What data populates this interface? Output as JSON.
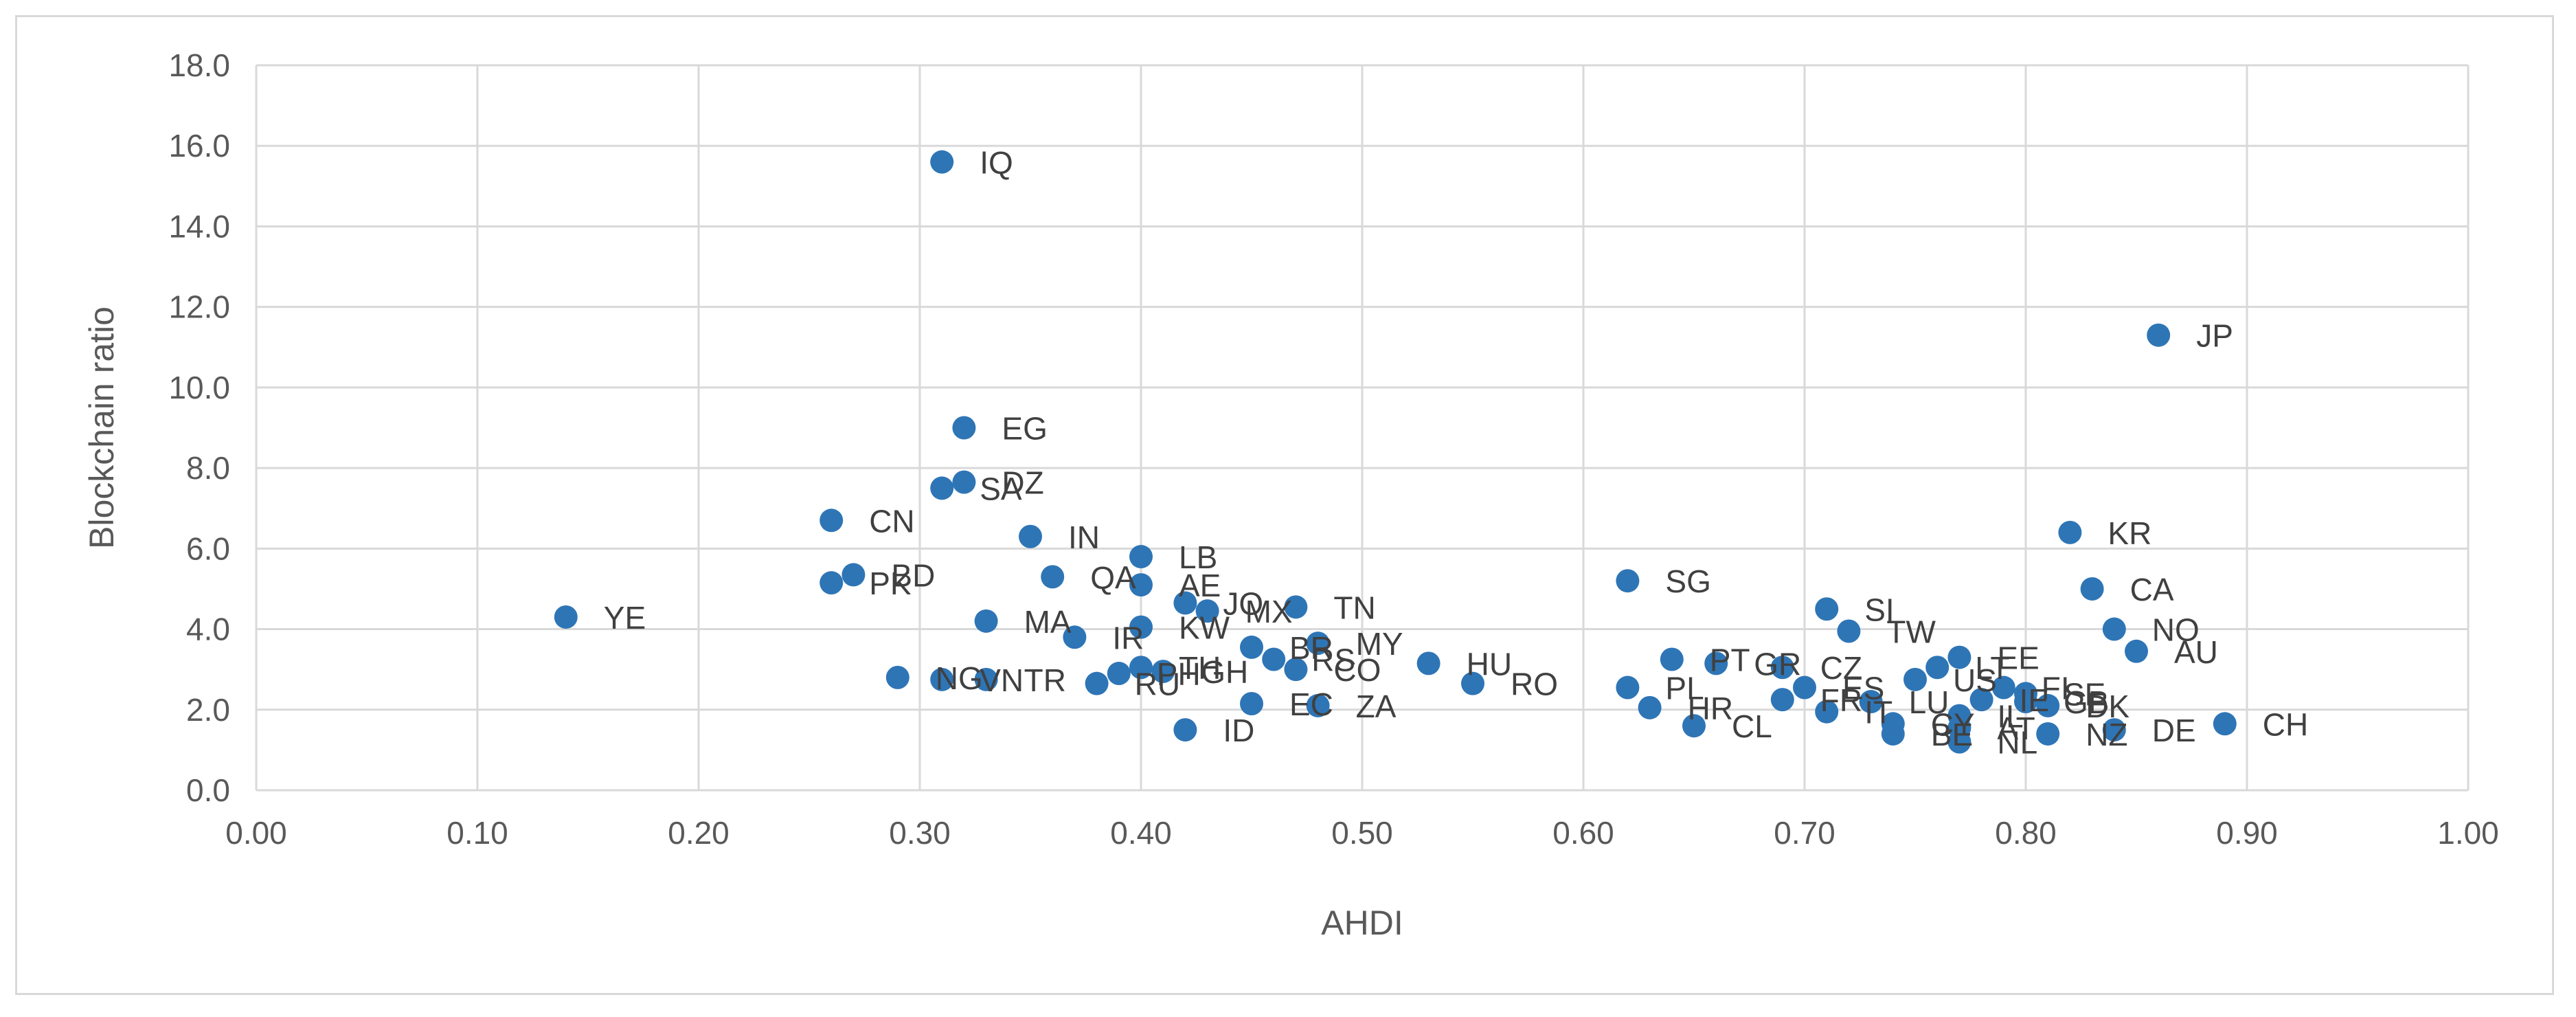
{
  "chart_data": {
    "type": "scatter",
    "title": "",
    "xlabel": "AHDI",
    "ylabel": "Blockchain ratio",
    "xlim": [
      0,
      1
    ],
    "ylim": [
      0,
      18
    ],
    "grid": true,
    "legend": "none",
    "marker_color": "#2E75B6",
    "x_ticks": [
      "0.00",
      "0.10",
      "0.20",
      "0.30",
      "0.40",
      "0.50",
      "0.60",
      "0.70",
      "0.80",
      "0.90",
      "1.00"
    ],
    "y_ticks": [
      "0.0",
      "2.0",
      "4.0",
      "6.0",
      "8.0",
      "10.0",
      "12.0",
      "14.0",
      "16.0",
      "18.0"
    ],
    "points": [
      {
        "label": "YE",
        "x": 0.14,
        "y": 4.3
      },
      {
        "label": "IQ",
        "x": 0.31,
        "y": 15.6
      },
      {
        "label": "JP",
        "x": 0.86,
        "y": 11.3
      },
      {
        "label": "EG",
        "x": 0.32,
        "y": 9.0
      },
      {
        "label": "DZ",
        "x": 0.32,
        "y": 7.65
      },
      {
        "label": "SA",
        "x": 0.31,
        "y": 7.5
      },
      {
        "label": "CN",
        "x": 0.26,
        "y": 6.7
      },
      {
        "label": "IN",
        "x": 0.35,
        "y": 6.3
      },
      {
        "label": "KR",
        "x": 0.82,
        "y": 6.4
      },
      {
        "label": "LB",
        "x": 0.4,
        "y": 5.8
      },
      {
        "label": "BD",
        "x": 0.27,
        "y": 5.35
      },
      {
        "label": "PK",
        "x": 0.26,
        "y": 5.15
      },
      {
        "label": "QA",
        "x": 0.36,
        "y": 5.3
      },
      {
        "label": "AE",
        "x": 0.4,
        "y": 5.1
      },
      {
        "label": "SG",
        "x": 0.62,
        "y": 5.2
      },
      {
        "label": "CA",
        "x": 0.83,
        "y": 5.0
      },
      {
        "label": "JO",
        "x": 0.42,
        "y": 4.65
      },
      {
        "label": "MX",
        "x": 0.43,
        "y": 4.45
      },
      {
        "label": "TN",
        "x": 0.47,
        "y": 4.55
      },
      {
        "label": "SI",
        "x": 0.71,
        "y": 4.5
      },
      {
        "label": "MA",
        "x": 0.33,
        "y": 4.2
      },
      {
        "label": "KW",
        "x": 0.4,
        "y": 4.05
      },
      {
        "label": "NO",
        "x": 0.84,
        "y": 4.0
      },
      {
        "label": "TW",
        "x": 0.72,
        "y": 3.95
      },
      {
        "label": "IR",
        "x": 0.37,
        "y": 3.8
      },
      {
        "label": "MY",
        "x": 0.48,
        "y": 3.65
      },
      {
        "label": "BR",
        "x": 0.45,
        "y": 3.55
      },
      {
        "label": "AU",
        "x": 0.85,
        "y": 3.45
      },
      {
        "label": "EE",
        "x": 0.77,
        "y": 3.3
      },
      {
        "label": "RS",
        "x": 0.46,
        "y": 3.25
      },
      {
        "label": "PT",
        "x": 0.64,
        "y": 3.25
      },
      {
        "label": "HU",
        "x": 0.53,
        "y": 3.15
      },
      {
        "label": "GR",
        "x": 0.66,
        "y": 3.15
      },
      {
        "label": "CO",
        "x": 0.47,
        "y": 3.0
      },
      {
        "label": "CZ",
        "x": 0.69,
        "y": 3.05
      },
      {
        "label": "LT",
        "x": 0.76,
        "y": 3.05
      },
      {
        "label": "TH",
        "x": 0.4,
        "y": 3.05
      },
      {
        "label": "GH",
        "x": 0.41,
        "y": 2.95
      },
      {
        "label": "PH",
        "x": 0.39,
        "y": 2.9
      },
      {
        "label": "NG",
        "x": 0.29,
        "y": 2.8
      },
      {
        "label": "VN",
        "x": 0.31,
        "y": 2.75
      },
      {
        "label": "TR",
        "x": 0.33,
        "y": 2.75
      },
      {
        "label": "RU",
        "x": 0.38,
        "y": 2.65
      },
      {
        "label": "RO",
        "x": 0.55,
        "y": 2.65
      },
      {
        "label": "US",
        "x": 0.75,
        "y": 2.75
      },
      {
        "label": "ES",
        "x": 0.7,
        "y": 2.55
      },
      {
        "label": "FI",
        "x": 0.79,
        "y": 2.55
      },
      {
        "label": "PL",
        "x": 0.62,
        "y": 2.55
      },
      {
        "label": "SE",
        "x": 0.8,
        "y": 2.4
      },
      {
        "label": "FR",
        "x": 0.69,
        "y": 2.25
      },
      {
        "label": "LU",
        "x": 0.73,
        "y": 2.2
      },
      {
        "label": "IE",
        "x": 0.78,
        "y": 2.25
      },
      {
        "label": "GB",
        "x": 0.8,
        "y": 2.2
      },
      {
        "label": "DK",
        "x": 0.81,
        "y": 2.1
      },
      {
        "label": "EC",
        "x": 0.45,
        "y": 2.15
      },
      {
        "label": "ZA",
        "x": 0.48,
        "y": 2.1
      },
      {
        "label": "HR",
        "x": 0.63,
        "y": 2.05
      },
      {
        "label": "IT",
        "x": 0.71,
        "y": 1.95
      },
      {
        "label": "IL",
        "x": 0.77,
        "y": 1.85
      },
      {
        "label": "CY",
        "x": 0.74,
        "y": 1.65
      },
      {
        "label": "CH",
        "x": 0.89,
        "y": 1.65
      },
      {
        "label": "CL",
        "x": 0.65,
        "y": 1.6
      },
      {
        "label": "AT",
        "x": 0.77,
        "y": 1.55
      },
      {
        "label": "ID",
        "x": 0.42,
        "y": 1.5
      },
      {
        "label": "DE",
        "x": 0.84,
        "y": 1.5
      },
      {
        "label": "BE",
        "x": 0.74,
        "y": 1.4
      },
      {
        "label": "NZ",
        "x": 0.81,
        "y": 1.4
      },
      {
        "label": "NL",
        "x": 0.77,
        "y": 1.2
      }
    ]
  }
}
